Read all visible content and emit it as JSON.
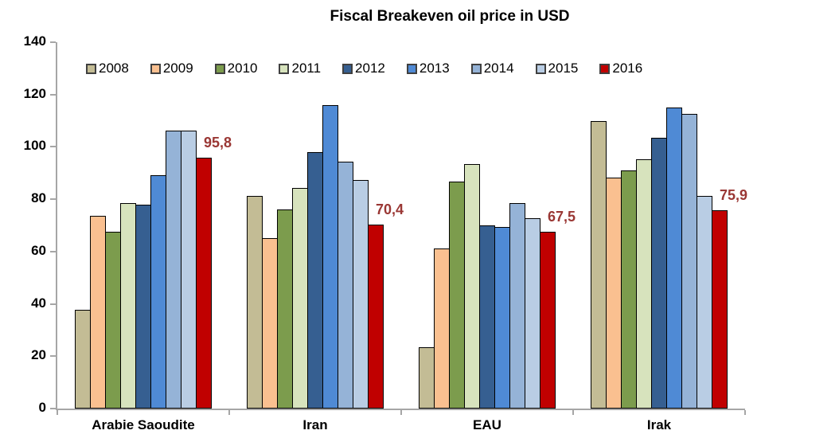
{
  "chart_data": {
    "type": "bar",
    "title": "Fiscal Breakeven oil price in USD",
    "categories": [
      "Arabie Saoudite",
      "Iran",
      "EAU",
      "Irak"
    ],
    "series": [
      {
        "name": "2008",
        "color": "#C3BC95",
        "values": [
          37.7,
          81.3,
          23.5,
          110.0
        ]
      },
      {
        "name": "2009",
        "color": "#FAC090",
        "values": [
          73.6,
          65.0,
          61.2,
          88.2
        ]
      },
      {
        "name": "2010",
        "color": "#7C9C4D",
        "values": [
          67.6,
          76.0,
          86.7,
          90.9
        ]
      },
      {
        "name": "2011",
        "color": "#D7E3BD",
        "values": [
          78.4,
          84.3,
          93.5,
          95.3
        ]
      },
      {
        "name": "2012",
        "color": "#365F91",
        "values": [
          77.9,
          98.1,
          70.1,
          103.4
        ]
      },
      {
        "name": "2013",
        "color": "#4F8AD5",
        "values": [
          89.3,
          116.1,
          69.3,
          115.0
        ]
      },
      {
        "name": "2014",
        "color": "#95B3D7",
        "values": [
          106.1,
          94.5,
          78.5,
          112.7
        ]
      },
      {
        "name": "2015",
        "color": "#B9CDE4",
        "values": [
          106.1,
          87.4,
          72.9,
          81.3
        ]
      },
      {
        "name": "2016",
        "color": "#C00000",
        "values": [
          95.8,
          70.4,
          67.5,
          75.9
        ]
      }
    ],
    "data_labels": {
      "series": "2016",
      "values": [
        "95,8",
        "70,4",
        "67,5",
        "75,9"
      ],
      "color": "#9A3734"
    },
    "ylim": [
      0,
      140
    ],
    "yticks": [
      0,
      20,
      40,
      60,
      80,
      100,
      120,
      140
    ],
    "xlabel": "",
    "ylabel": "",
    "grid": false,
    "legend_position": "top"
  },
  "colors": {
    "axis": "#A6A6A6",
    "bar_border": "#000000",
    "background": "#FFFFFF"
  }
}
